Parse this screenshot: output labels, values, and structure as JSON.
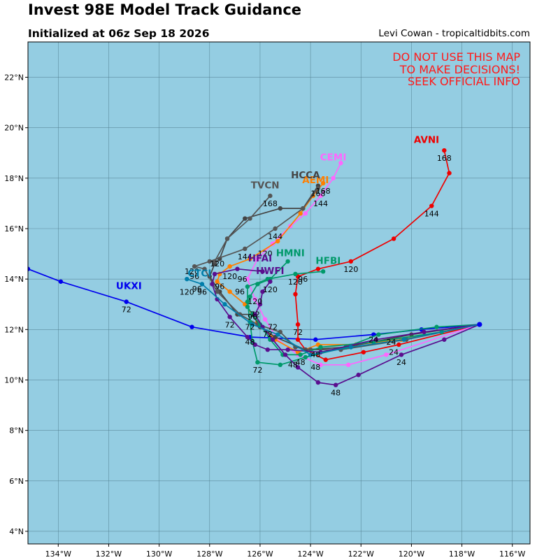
{
  "header": {
    "title": "Invest 98E Model Track Guidance",
    "subtitle": "Initialized at 06z Sep 18 2026",
    "credit": "Levi Cowan - tropicaltidbits.com"
  },
  "warning": [
    "DO NOT USE THIS MAP",
    "TO MAKE DECISIONS!",
    "SEEK OFFICIAL INFO"
  ],
  "colors": {
    "ocean": "#94cde2",
    "grid": "#4f7d8c",
    "warning": "#ff1a1a"
  },
  "chart_data": {
    "type": "map",
    "projection": "lon-lat",
    "xlim": [
      -135.2,
      -115.3
    ],
    "ylim": [
      3.5,
      23.4
    ],
    "x_ticks": [
      -134,
      -132,
      -130,
      -128,
      -126,
      -124,
      -122,
      -120,
      -118,
      -116
    ],
    "x_tick_labels": [
      "134°W",
      "132°W",
      "130°W",
      "128°W",
      "126°W",
      "124°W",
      "122°W",
      "120°W",
      "118°W",
      "116°W"
    ],
    "y_ticks": [
      4,
      6,
      8,
      10,
      12,
      14,
      16,
      18,
      20,
      22
    ],
    "y_tick_labels": [
      "4°N",
      "6°N",
      "8°N",
      "10°N",
      "12°N",
      "14°N",
      "16°N",
      "18°N",
      "20°N",
      "22°N"
    ],
    "start": [
      -117.3,
      12.2
    ],
    "series": [
      {
        "name": "UKXI",
        "color": "#0000ee",
        "label_pos": [
          -131.2,
          13.6
        ],
        "points": [
          [
            -117.3,
            12.2
          ],
          [
            -119.6,
            12.0
          ],
          [
            -121.5,
            11.8
          ],
          [
            -123.8,
            11.6
          ],
          [
            -126.4,
            11.7
          ],
          [
            -128.7,
            12.1
          ],
          [
            -131.3,
            13.1
          ],
          [
            -133.9,
            13.9
          ],
          [
            -135.2,
            14.4
          ]
        ],
        "hours": [
          {
            "pos": [
              -131.3,
              13.1
            ],
            "text": "72"
          }
        ]
      },
      {
        "name": "AVNI",
        "color": "#ee0000",
        "label_pos": [
          -119.4,
          19.4
        ],
        "points": [
          [
            -117.3,
            12.2
          ],
          [
            -120.5,
            11.4
          ],
          [
            -121.9,
            11.1
          ],
          [
            -123.4,
            10.8
          ],
          [
            -124.2,
            11.2
          ],
          [
            -124.5,
            11.6
          ],
          [
            -124.5,
            12.2
          ],
          [
            -124.6,
            13.4
          ],
          [
            -124.5,
            14.1
          ],
          [
            -123.7,
            14.4
          ],
          [
            -122.4,
            14.7
          ],
          [
            -120.7,
            15.6
          ],
          [
            -119.2,
            16.9
          ],
          [
            -118.5,
            18.2
          ],
          [
            -118.7,
            19.1
          ]
        ],
        "hours": [
          {
            "pos": [
              -124.5,
              12.2
            ],
            "text": "72"
          },
          {
            "pos": [
              -122.4,
              14.7
            ],
            "text": "120"
          },
          {
            "pos": [
              -119.2,
              16.9
            ],
            "text": "144"
          },
          {
            "pos": [
              -118.7,
              19.1
            ],
            "text": "168"
          }
        ]
      },
      {
        "name": "CEMI",
        "color": "#ff66ff",
        "label_pos": [
          -123.1,
          18.7
        ],
        "points": [
          [
            -117.3,
            12.2
          ],
          [
            -121.0,
            11.0
          ],
          [
            -122.5,
            10.6
          ],
          [
            -123.6,
            10.6
          ],
          [
            -124.5,
            11.0
          ],
          [
            -125.3,
            11.6
          ],
          [
            -125.8,
            12.4
          ],
          [
            -126.2,
            13.2
          ],
          [
            -126.5,
            14.0
          ],
          [
            -126.1,
            14.8
          ],
          [
            -125.5,
            15.4
          ],
          [
            -124.8,
            16.1
          ],
          [
            -124.2,
            16.6
          ],
          [
            -123.6,
            17.3
          ],
          [
            -123.1,
            18.0
          ],
          [
            -122.8,
            18.6
          ]
        ],
        "hours": [
          {
            "pos": [
              -123.6,
              17.3
            ],
            "text": "144"
          }
        ]
      },
      {
        "name": "AEMI",
        "color": "#ff7f00",
        "label_pos": [
          -123.8,
          17.8
        ],
        "points": [
          [
            -117.3,
            12.2
          ],
          [
            -120.4,
            11.6
          ],
          [
            -122.2,
            11.4
          ],
          [
            -123.7,
            11.4
          ],
          [
            -124.5,
            11.1
          ],
          [
            -125.4,
            11.6
          ],
          [
            -126.1,
            12.3
          ],
          [
            -126.6,
            13.0
          ],
          [
            -127.2,
            13.5
          ],
          [
            -127.7,
            13.9
          ],
          [
            -127.6,
            14.2
          ],
          [
            -127.2,
            14.5
          ],
          [
            -126.4,
            14.8
          ],
          [
            -125.3,
            15.5
          ],
          [
            -124.4,
            16.6
          ],
          [
            -123.9,
            17.3
          ],
          [
            -123.5,
            17.8
          ]
        ],
        "hours": [
          {
            "pos": [
              -123.5,
              17.8
            ],
            "text": "168"
          }
        ]
      },
      {
        "name": "HCCA",
        "color": "#444444",
        "label_pos": [
          -124.2,
          18.0
        ],
        "points": [
          [
            -117.3,
            12.2
          ],
          [
            -120.0,
            11.8
          ],
          [
            -122.6,
            11.3
          ],
          [
            -124.2,
            11.2
          ],
          [
            -125.4,
            11.7
          ],
          [
            -126.0,
            12.1
          ],
          [
            -126.3,
            12.6
          ],
          [
            -126.9,
            12.6
          ],
          [
            -127.6,
            13.5
          ],
          [
            -128.0,
            14.1
          ],
          [
            -127.8,
            14.6
          ],
          [
            -127.6,
            14.8
          ],
          [
            -127.3,
            15.6
          ],
          [
            -126.6,
            16.4
          ],
          [
            -125.2,
            16.8
          ],
          [
            -124.3,
            16.8
          ],
          [
            -123.7,
            17.7
          ]
        ],
        "hours": [
          {
            "pos": [
              -123.7,
              17.7
            ],
            "text": "168"
          }
        ]
      },
      {
        "name": "TVCN",
        "color": "#555555",
        "label_pos": [
          -125.8,
          17.6
        ],
        "points": [
          [
            -117.3,
            12.2
          ],
          [
            -120.2,
            11.6
          ],
          [
            -122.8,
            11.2
          ],
          [
            -124.0,
            11.2
          ],
          [
            -124.6,
            11.3
          ],
          [
            -125.2,
            11.9
          ],
          [
            -126.1,
            12.2
          ],
          [
            -126.8,
            12.6
          ],
          [
            -127.7,
            13.5
          ],
          [
            -128.2,
            14.4
          ],
          [
            -128.6,
            14.5
          ],
          [
            -128.0,
            14.7
          ],
          [
            -126.6,
            15.2
          ],
          [
            -125.4,
            16.0
          ],
          [
            -124.3,
            16.8
          ],
          [
            -123.7,
            17.6
          ]
        ],
        "hours": [
          {
            "pos": [
              -125.6,
              17.3
            ],
            "text": "168"
          },
          {
            "pos": [
              -125.4,
              16.0
            ],
            "text": "144"
          },
          {
            "pos": [
              -126.6,
              15.2
            ],
            "text": "144"
          }
        ]
      },
      {
        "name": "TVCN",
        "color": "#555555",
        "label_pos": null,
        "points": [
          [
            -127.8,
            14.7
          ],
          [
            -127.3,
            15.6
          ],
          [
            -126.4,
            16.4
          ],
          [
            -125.6,
            17.3
          ]
        ],
        "hours": []
      },
      {
        "name": "HMNI",
        "color": "#00996a",
        "label_pos": [
          -124.8,
          14.9
        ],
        "points": [
          [
            -117.3,
            12.2
          ],
          [
            -119.0,
            12.1
          ],
          [
            -121.3,
            11.8
          ],
          [
            -122.6,
            11.3
          ],
          [
            -124.2,
            10.9
          ],
          [
            -125.2,
            10.6
          ],
          [
            -126.1,
            10.7
          ],
          [
            -126.3,
            11.5
          ],
          [
            -126.4,
            12.3
          ],
          [
            -126.5,
            13.1
          ],
          [
            -126.5,
            13.7
          ],
          [
            -125.7,
            14.0
          ],
          [
            -124.6,
            14.2
          ],
          [
            -123.5,
            14.3
          ]
        ],
        "hours": [
          {
            "pos": [
              -126.1,
              10.7
            ],
            "text": "72"
          },
          {
            "pos": [
              -124.6,
              14.2
            ],
            "text": "120"
          }
        ]
      },
      {
        "name": "HFBI",
        "color": "#00996a",
        "label_pos": [
          -123.3,
          14.6
        ],
        "points": [
          [
            -117.3,
            12.2
          ],
          [
            -118.8,
            11.9
          ],
          [
            -121.5,
            11.5
          ],
          [
            -123.6,
            11.3
          ],
          [
            -124.4,
            11.0
          ],
          [
            -125.1,
            11.0
          ],
          [
            -125.6,
            11.6
          ],
          [
            -126.0,
            12.2
          ],
          [
            -126.3,
            12.6
          ],
          [
            -126.5,
            12.9
          ],
          [
            -126.4,
            13.3
          ],
          [
            -126.1,
            13.8
          ],
          [
            -125.6,
            14.0
          ],
          [
            -124.9,
            14.7
          ]
        ],
        "hours": []
      },
      {
        "name": "HFAI",
        "color": "#5a0f8f",
        "label_pos": [
          -126.0,
          14.7
        ],
        "points": [
          [
            -117.3,
            12.2
          ],
          [
            -118.7,
            11.6
          ],
          [
            -120.4,
            11.0
          ],
          [
            -122.1,
            10.2
          ],
          [
            -123.0,
            9.8
          ],
          [
            -123.7,
            9.9
          ],
          [
            -124.5,
            10.5
          ],
          [
            -125.0,
            11.0
          ],
          [
            -125.5,
            11.6
          ],
          [
            -125.9,
            12.1
          ],
          [
            -126.2,
            12.6
          ],
          [
            -126.0,
            13.0
          ],
          [
            -125.9,
            13.5
          ],
          [
            -125.6,
            13.9
          ]
        ],
        "hours": [
          {
            "pos": [
              -123.0,
              9.8
            ],
            "text": "48"
          },
          {
            "pos": [
              -125.6,
              13.9
            ],
            "text": "120"
          }
        ]
      },
      {
        "name": "HWFI",
        "color": "#5a0f8f",
        "label_pos": [
          -125.6,
          14.2
        ],
        "points": [
          [
            -117.3,
            12.2
          ],
          [
            -119.5,
            11.9
          ],
          [
            -121.4,
            11.6
          ],
          [
            -123.6,
            11.1
          ],
          [
            -124.9,
            11.2
          ],
          [
            -125.7,
            11.2
          ],
          [
            -126.2,
            11.4
          ],
          [
            -126.5,
            11.7
          ],
          [
            -127.2,
            12.5
          ],
          [
            -127.7,
            13.2
          ],
          [
            -127.9,
            13.8
          ],
          [
            -127.8,
            14.2
          ],
          [
            -126.9,
            14.4
          ],
          [
            -125.9,
            14.3
          ]
        ],
        "hours": [
          {
            "pos": [
              -127.2,
              12.5
            ],
            "text": "72"
          }
        ]
      },
      {
        "name": "CTCI",
        "color": "#007daa",
        "label_pos": [
          -128.4,
          14.1
        ],
        "points": [
          [
            -117.3,
            12.2
          ],
          [
            -120.3,
            11.6
          ],
          [
            -122.4,
            11.3
          ],
          [
            -124.0,
            11.0
          ],
          [
            -125.3,
            11.8
          ],
          [
            -126.3,
            12.2
          ],
          [
            -127.4,
            13.0
          ],
          [
            -128.3,
            13.8
          ],
          [
            -128.9,
            14.0
          ]
        ],
        "hours": [
          {
            "pos": [
              -128.9,
              13.8
            ],
            "text": "120"
          },
          {
            "pos": [
              -128.3,
              13.8
            ],
            "text": "96"
          }
        ]
      }
    ],
    "hour_labels": [
      {
        "pos": [
          -120.7,
          11.0
        ],
        "text": "24"
      },
      {
        "pos": [
          -120.4,
          10.6
        ],
        "text": "24"
      },
      {
        "pos": [
          -120.8,
          11.4
        ],
        "text": "24"
      },
      {
        "pos": [
          -121.5,
          11.5
        ],
        "text": "24"
      },
      {
        "pos": [
          -123.8,
          10.9
        ],
        "text": "48"
      },
      {
        "pos": [
          -124.4,
          10.6
        ],
        "text": "48"
      },
      {
        "pos": [
          -123.8,
          10.4
        ],
        "text": "48"
      },
      {
        "pos": [
          -124.7,
          10.5
        ],
        "text": "48"
      },
      {
        "pos": [
          -126.4,
          11.4
        ],
        "text": "48"
      },
      {
        "pos": [
          -126.4,
          12.0
        ],
        "text": "72"
      },
      {
        "pos": [
          -125.5,
          12.0
        ],
        "text": "72"
      },
      {
        "pos": [
          -125.7,
          11.7
        ],
        "text": "72"
      },
      {
        "pos": [
          -126.3,
          12.4
        ],
        "text": "96"
      },
      {
        "pos": [
          -126.8,
          13.4
        ],
        "text": "96"
      },
      {
        "pos": [
          -126.2,
          13.0
        ],
        "text": "120"
      },
      {
        "pos": [
          -127.6,
          13.6
        ],
        "text": "96"
      },
      {
        "pos": [
          -128.5,
          13.5
        ],
        "text": "96"
      },
      {
        "pos": [
          -127.2,
          14.0
        ],
        "text": "120"
      },
      {
        "pos": [
          -126.7,
          13.9
        ],
        "text": "96"
      },
      {
        "pos": [
          -127.7,
          14.5
        ],
        "text": "120"
      },
      {
        "pos": [
          -125.8,
          14.9
        ],
        "text": "120"
      },
      {
        "pos": [
          -124.3,
          13.9
        ],
        "text": "96"
      },
      {
        "pos": [
          -128.6,
          14.0
        ],
        "text": "96"
      },
      {
        "pos": [
          -128.7,
          14.2
        ],
        "text": "120"
      },
      {
        "pos": [
          -126.2,
          12.5
        ],
        "text": "72"
      }
    ]
  }
}
